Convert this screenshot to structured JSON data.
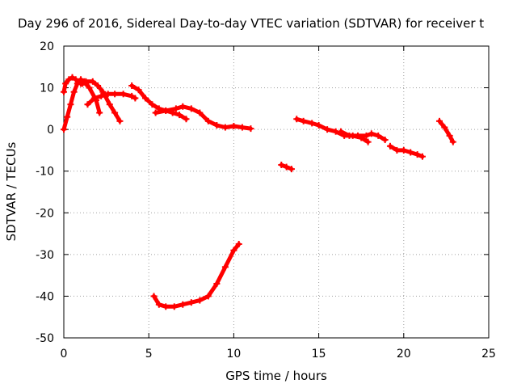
{
  "chart_data": {
    "type": "scatter",
    "title": "Day 296 of 2016, Sidereal Day-to-day VTEC variation (SDTVAR) for receiver t",
    "xlabel": "GPS time / hours",
    "ylabel": "SDTVAR / TECUs",
    "xlim": [
      0,
      25
    ],
    "ylim": [
      -50,
      20
    ],
    "x_ticks": [
      0,
      5,
      10,
      15,
      20,
      25
    ],
    "y_ticks": [
      -50,
      -40,
      -30,
      -20,
      -10,
      0,
      10,
      20
    ],
    "x_tick_labels": [
      "0",
      "5",
      "10",
      "15",
      "20",
      "25"
    ],
    "y_tick_labels": [
      "-50",
      "-40",
      "-30",
      "-20",
      "-10",
      "0",
      "10",
      "20"
    ],
    "grid": true,
    "legend": "none",
    "color": "#ff0000",
    "series": [
      {
        "x": [
          0.0,
          0.1,
          0.3,
          0.5,
          0.7,
          0.9,
          1.1,
          1.3
        ],
        "y": [
          9,
          11,
          12,
          12.5,
          12,
          11.5,
          11,
          11
        ]
      },
      {
        "x": [
          0.0,
          0.2,
          0.4,
          0.6,
          0.8,
          1.0,
          1.2,
          1.5,
          1.9,
          2.1
        ],
        "y": [
          0,
          3,
          6,
          9,
          11,
          12,
          11.5,
          10,
          7,
          4
        ]
      },
      {
        "x": [
          1.0,
          1.3,
          1.7,
          2.0,
          2.3,
          2.7,
          3.0,
          3.3
        ],
        "y": [
          11,
          11.5,
          11.5,
          10.5,
          9,
          6,
          4,
          2
        ]
      },
      {
        "x": [
          1.4,
          1.8,
          2.2,
          2.6,
          3.0,
          3.5,
          4.0,
          4.2
        ],
        "y": [
          6,
          7.5,
          8,
          8.5,
          8.5,
          8.5,
          8,
          7.5
        ]
      },
      {
        "x": [
          4.0,
          4.4,
          4.8,
          5.2,
          5.6,
          6.0,
          6.4,
          6.8,
          7.2
        ],
        "y": [
          10.5,
          9.5,
          7.5,
          6,
          5,
          4.5,
          4,
          3.5,
          2.5
        ]
      },
      {
        "x": [
          5.4,
          6.0,
          6.6,
          7.0,
          7.5,
          8.0,
          8.5,
          9.0,
          9.5,
          10.0,
          10.5,
          11.0
        ],
        "y": [
          4,
          4.5,
          5,
          5.5,
          5,
          4,
          2,
          1,
          0.5,
          0.8,
          0.5,
          0.2
        ]
      },
      {
        "x": [
          12.8,
          13.1,
          13.4
        ],
        "y": [
          -8.5,
          -9,
          -9.5
        ]
      },
      {
        "x": [
          13.7,
          14.1,
          14.6,
          15.0,
          15.5,
          16.0,
          16.5,
          17.0,
          17.5,
          17.9
        ],
        "y": [
          2.5,
          2,
          1.5,
          1,
          0,
          -0.5,
          -1.5,
          -1.5,
          -2,
          -3
        ]
      },
      {
        "x": [
          16.3,
          16.8,
          17.3,
          17.8,
          18.1,
          18.5,
          18.9
        ],
        "y": [
          -0.5,
          -1.5,
          -1.5,
          -1.5,
          -1,
          -1.5,
          -2.5
        ]
      },
      {
        "x": [
          19.2,
          19.6,
          20.0,
          20.4,
          20.8,
          21.1
        ],
        "y": [
          -4,
          -5,
          -5,
          -5.5,
          -6,
          -6.5
        ]
      },
      {
        "x": [
          22.1,
          22.4,
          22.7,
          22.9
        ],
        "y": [
          2,
          0.5,
          -1.5,
          -3
        ]
      },
      {
        "x": [
          5.3,
          5.6,
          6.0,
          6.5,
          7.0,
          7.5,
          8.0,
          8.5,
          9.0,
          9.5,
          10.0,
          10.3
        ],
        "y": [
          -40,
          -42,
          -42.5,
          -42.5,
          -42,
          -41.5,
          -41,
          -40,
          -37,
          -33,
          -29,
          -27.5
        ]
      }
    ]
  }
}
